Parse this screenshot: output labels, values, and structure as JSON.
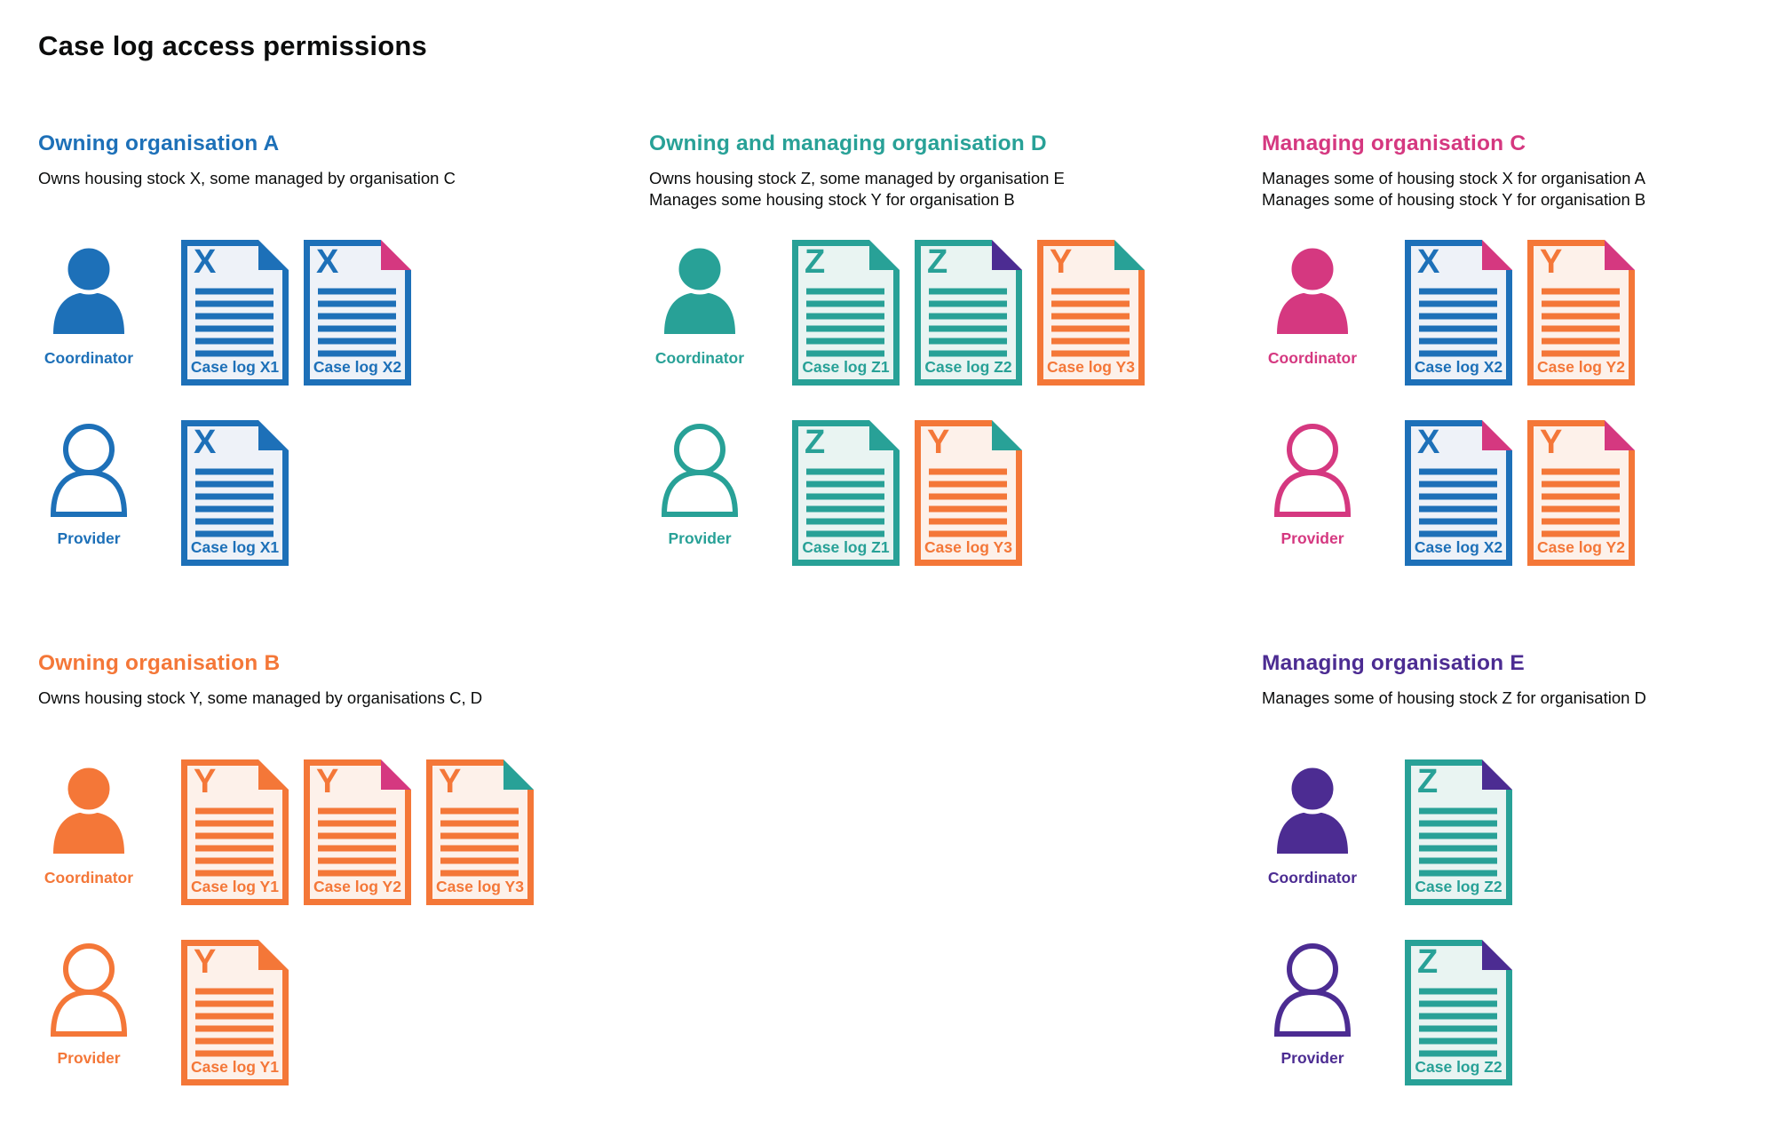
{
  "page_title": "Case log access permissions",
  "colors": {
    "blue": "#1d70b8",
    "teal": "#28a197",
    "pink": "#d53880",
    "orange": "#f47738",
    "purple": "#4c2c92",
    "text": "#0b0c0c",
    "blue_bg": "#eef2f8",
    "teal_bg": "#e9f4f2",
    "orange_bg": "#fdf1ea"
  },
  "sections": [
    {
      "id": "org-a",
      "title": "Owning organisation A",
      "color_name": "blue",
      "description": [
        "Owns housing stock X, some managed by organisation C"
      ],
      "rows": [
        {
          "role": "Coordinator",
          "person_style": "filled",
          "docs": [
            {
              "letter": "X",
              "label": "Case log X1",
              "doc_color": "blue",
              "fold_color": "blue"
            },
            {
              "letter": "X",
              "label": "Case log X2",
              "doc_color": "blue",
              "fold_color": "pink"
            }
          ]
        },
        {
          "role": "Provider",
          "person_style": "outline",
          "docs": [
            {
              "letter": "X",
              "label": "Case log X1",
              "doc_color": "blue",
              "fold_color": "blue"
            }
          ]
        }
      ]
    },
    {
      "id": "org-d",
      "title": "Owning and managing organisation D",
      "color_name": "teal",
      "description": [
        "Owns housing stock Z, some managed by organisation E",
        "Manages some housing stock Y for organisation B"
      ],
      "rows": [
        {
          "role": "Coordinator",
          "person_style": "filled",
          "docs": [
            {
              "letter": "Z",
              "label": "Case log Z1",
              "doc_color": "teal",
              "fold_color": "teal"
            },
            {
              "letter": "Z",
              "label": "Case log Z2",
              "doc_color": "teal",
              "fold_color": "purple"
            },
            {
              "letter": "Y",
              "label": "Case log Y3",
              "doc_color": "orange",
              "fold_color": "teal"
            }
          ]
        },
        {
          "role": "Provider",
          "person_style": "outline",
          "docs": [
            {
              "letter": "Z",
              "label": "Case log Z1",
              "doc_color": "teal",
              "fold_color": "teal"
            },
            {
              "letter": "Y",
              "label": "Case log Y3",
              "doc_color": "orange",
              "fold_color": "teal"
            }
          ]
        }
      ]
    },
    {
      "id": "org-c",
      "title": "Managing organisation C",
      "color_name": "pink",
      "description": [
        "Manages some of housing stock X for organisation A",
        "Manages some of housing stock Y for organisation B"
      ],
      "rows": [
        {
          "role": "Coordinator",
          "person_style": "filled",
          "docs": [
            {
              "letter": "X",
              "label": "Case log X2",
              "doc_color": "blue",
              "fold_color": "pink"
            },
            {
              "letter": "Y",
              "label": "Case log Y2",
              "doc_color": "orange",
              "fold_color": "pink"
            }
          ]
        },
        {
          "role": "Provider",
          "person_style": "outline",
          "docs": [
            {
              "letter": "X",
              "label": "Case log X2",
              "doc_color": "blue",
              "fold_color": "pink"
            },
            {
              "letter": "Y",
              "label": "Case log Y2",
              "doc_color": "orange",
              "fold_color": "pink"
            }
          ]
        }
      ]
    },
    {
      "id": "org-b",
      "title": "Owning organisation B",
      "color_name": "orange",
      "description": [
        "Owns housing stock Y, some managed by organisations C, D"
      ],
      "rows": [
        {
          "role": "Coordinator",
          "person_style": "filled",
          "docs": [
            {
              "letter": "Y",
              "label": "Case log Y1",
              "doc_color": "orange",
              "fold_color": "orange"
            },
            {
              "letter": "Y",
              "label": "Case log Y2",
              "doc_color": "orange",
              "fold_color": "pink"
            },
            {
              "letter": "Y",
              "label": "Case log Y3",
              "doc_color": "orange",
              "fold_color": "teal"
            }
          ]
        },
        {
          "role": "Provider",
          "person_style": "outline",
          "docs": [
            {
              "letter": "Y",
              "label": "Case log Y1",
              "doc_color": "orange",
              "fold_color": "orange"
            }
          ]
        }
      ]
    },
    {
      "id": "org-e",
      "title": "Managing organisation E",
      "color_name": "purple",
      "description": [
        "Manages some of housing stock Z for organisation D"
      ],
      "rows": [
        {
          "role": "Coordinator",
          "person_style": "filled",
          "docs": [
            {
              "letter": "Z",
              "label": "Case log Z2",
              "doc_color": "teal",
              "fold_color": "purple"
            }
          ]
        },
        {
          "role": "Provider",
          "person_style": "outline",
          "docs": [
            {
              "letter": "Z",
              "label": "Case log Z2",
              "doc_color": "teal",
              "fold_color": "purple"
            }
          ]
        }
      ]
    }
  ]
}
